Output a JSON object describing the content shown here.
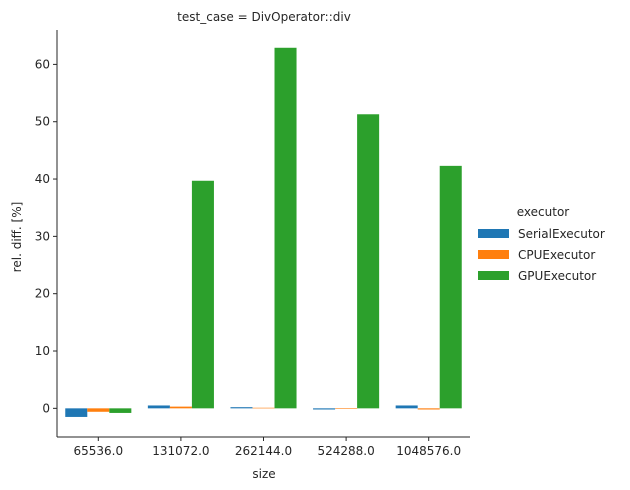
{
  "chart_data": {
    "type": "bar",
    "title": "test_case = DivOperator::div",
    "xlabel": "size",
    "ylabel": "rel. diff. [%]",
    "categories": [
      "65536.0",
      "131072.0",
      "262144.0",
      "524288.0",
      "1048576.0"
    ],
    "ylim": [
      -5,
      66
    ],
    "yticks": [
      0,
      10,
      20,
      30,
      40,
      50,
      60
    ],
    "grid": false,
    "legend": {
      "title": "executor",
      "placement": "right"
    },
    "series": [
      {
        "name": "SerialExecutor",
        "color": "#1f77b4",
        "values": [
          -1.5,
          0.5,
          0.2,
          -0.2,
          0.5
        ]
      },
      {
        "name": "CPUExecutor",
        "color": "#ff7f0e",
        "values": [
          -0.6,
          0.3,
          0.1,
          0.0,
          -0.2
        ]
      },
      {
        "name": "GPUExecutor",
        "color": "#2ca02c",
        "values": [
          -0.8,
          39.7,
          62.9,
          51.3,
          42.3
        ]
      }
    ]
  }
}
